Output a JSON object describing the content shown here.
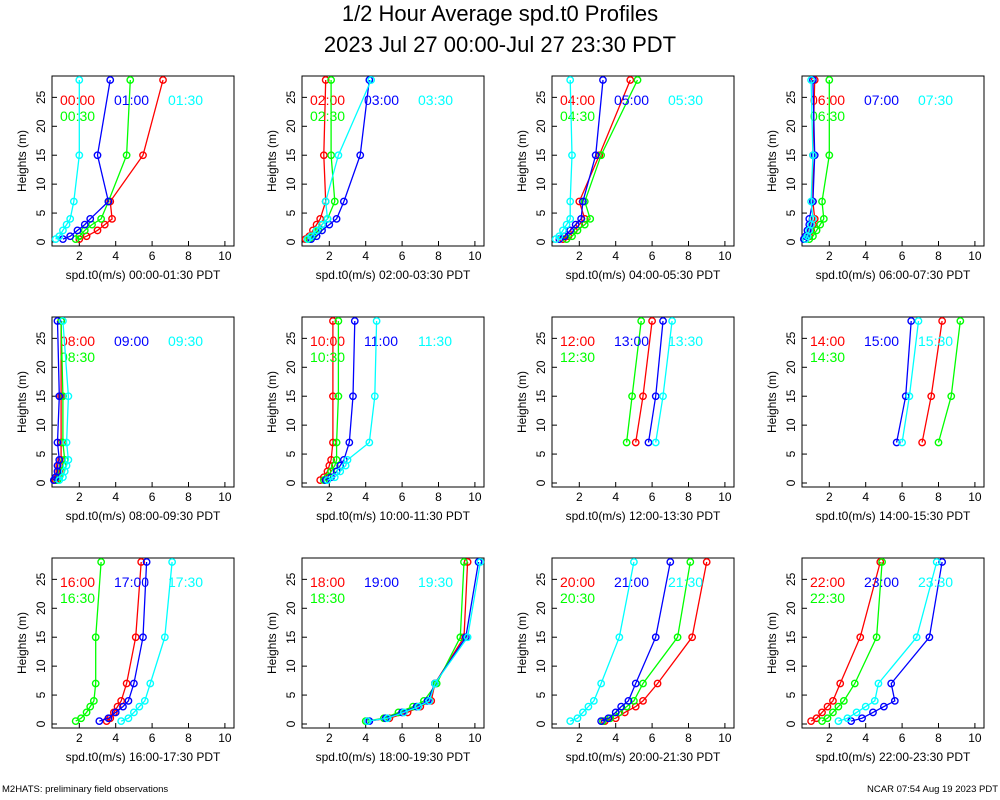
{
  "header": {
    "title_line1": "1/2 Hour Average spd.t0 Profiles",
    "title_line2": "2023 Jul 27 00:00-Jul 27 23:30 PDT"
  },
  "footer": {
    "left": "M2HATS: preliminary field observations",
    "right": "NCAR 07:54 Aug 19 2023 PDT"
  },
  "colors": {
    "series": [
      "#ff0000",
      "#00ff00",
      "#0000ff",
      "#00ffff"
    ]
  },
  "chart_data": [
    {
      "type": "line",
      "xlabel": "spd.t0(m/s) 00:00-01:30 PDT",
      "ylabel": "Heights (m)",
      "xlim": [
        0.5,
        10.5
      ],
      "ylim": [
        0,
        28
      ],
      "x_ticks": [
        2,
        4,
        6,
        8,
        10
      ],
      "y_ticks": [
        0,
        5,
        10,
        15,
        20,
        25
      ],
      "heights": [
        0.5,
        1,
        2,
        3,
        4,
        7,
        15,
        28
      ],
      "series": [
        {
          "name": "00:00",
          "color": "#ff0000",
          "x": [
            2.0,
            2.4,
            3.0,
            3.4,
            3.8,
            3.7,
            5.5,
            6.6
          ]
        },
        {
          "name": "00:30",
          "color": "#00ff00",
          "x": [
            1.8,
            2.0,
            2.3,
            2.7,
            3.2,
            3.6,
            4.6,
            4.8
          ]
        },
        {
          "name": "01:00",
          "color": "#0000ff",
          "x": [
            1.1,
            1.5,
            1.9,
            2.3,
            2.6,
            3.6,
            3.0,
            3.7
          ]
        },
        {
          "name": "01:30",
          "color": "#00ffff",
          "x": [
            0.7,
            0.9,
            1.1,
            1.3,
            1.5,
            1.7,
            2.0,
            2.0
          ]
        }
      ]
    },
    {
      "type": "line",
      "xlabel": "spd.t0(m/s) 02:00-03:30 PDT",
      "ylabel": "Heights (m)",
      "xlim": [
        0.5,
        10.5
      ],
      "ylim": [
        0,
        28
      ],
      "x_ticks": [
        2,
        4,
        6,
        8,
        10
      ],
      "y_ticks": [
        0,
        5,
        10,
        15,
        20,
        25
      ],
      "heights": [
        0.5,
        1,
        2,
        3,
        4,
        7,
        15,
        28
      ],
      "series": [
        {
          "name": "02:00",
          "color": "#ff0000",
          "x": [
            0.7,
            0.9,
            1.1,
            1.3,
            1.5,
            1.8,
            1.7,
            1.8
          ]
        },
        {
          "name": "02:30",
          "color": "#00ff00",
          "x": [
            0.9,
            1.1,
            1.4,
            1.6,
            1.9,
            2.3,
            2.1,
            2.1
          ]
        },
        {
          "name": "03:00",
          "color": "#0000ff",
          "x": [
            1.0,
            1.3,
            1.6,
            2.0,
            2.4,
            2.8,
            3.7,
            4.2
          ]
        },
        {
          "name": "03:30",
          "color": "#00ffff",
          "x": [
            0.8,
            1.0,
            1.3,
            1.6,
            1.9,
            1.8,
            2.5,
            4.3
          ]
        }
      ]
    },
    {
      "type": "line",
      "xlabel": "spd.t0(m/s) 04:00-05:30 PDT",
      "ylabel": "Heights (m)",
      "xlim": [
        0.5,
        10.5
      ],
      "ylim": [
        0,
        28
      ],
      "x_ticks": [
        2,
        4,
        6,
        8,
        10
      ],
      "y_ticks": [
        0,
        5,
        10,
        15,
        20,
        25
      ],
      "heights": [
        0.5,
        1,
        2,
        3,
        4,
        7,
        15,
        28
      ],
      "series": [
        {
          "name": "04:00",
          "color": "#ff0000",
          "x": [
            1.1,
            1.4,
            1.7,
            2.0,
            2.3,
            2.0,
            3.1,
            4.8
          ]
        },
        {
          "name": "04:30",
          "color": "#00ff00",
          "x": [
            1.3,
            1.6,
            1.9,
            2.3,
            2.6,
            2.3,
            3.2,
            5.2
          ]
        },
        {
          "name": "05:00",
          "color": "#0000ff",
          "x": [
            0.9,
            1.2,
            1.5,
            1.8,
            2.1,
            2.2,
            2.9,
            3.3
          ]
        },
        {
          "name": "05:30",
          "color": "#00ffff",
          "x": [
            0.7,
            0.9,
            1.1,
            1.3,
            1.5,
            1.5,
            1.6,
            1.5
          ]
        }
      ]
    },
    {
      "type": "line",
      "xlabel": "spd.t0(m/s) 06:00-07:30 PDT",
      "ylabel": "Heights (m)",
      "xlim": [
        0.5,
        10.5
      ],
      "ylim": [
        0,
        28
      ],
      "x_ticks": [
        2,
        4,
        6,
        8,
        10
      ],
      "y_ticks": [
        0,
        5,
        10,
        15,
        20,
        25
      ],
      "heights": [
        0.5,
        1,
        2,
        3,
        4,
        7,
        15,
        28
      ],
      "series": [
        {
          "name": "06:00",
          "color": "#ff0000",
          "x": [
            0.7,
            0.9,
            1.0,
            1.1,
            1.2,
            1.1,
            1.1,
            1.2
          ]
        },
        {
          "name": "06:30",
          "color": "#00ff00",
          "x": [
            0.9,
            1.1,
            1.3,
            1.5,
            1.7,
            1.6,
            2.0,
            2.0
          ]
        },
        {
          "name": "07:00",
          "color": "#0000ff",
          "x": [
            0.6,
            0.7,
            0.8,
            0.9,
            0.9,
            1.1,
            1.2,
            1.1
          ]
        },
        {
          "name": "07:30",
          "color": "#00ffff",
          "x": [
            0.7,
            0.8,
            0.9,
            1.0,
            1.1,
            1.0,
            1.1,
            1.0
          ]
        }
      ]
    },
    {
      "type": "line",
      "xlabel": "spd.t0(m/s) 08:00-09:30 PDT",
      "ylabel": "Heights (m)",
      "xlim": [
        0.5,
        10.5
      ],
      "ylim": [
        0,
        28
      ],
      "x_ticks": [
        2,
        4,
        6,
        8,
        10
      ],
      "y_ticks": [
        0,
        5,
        10,
        15,
        20,
        25
      ],
      "heights": [
        0.5,
        1,
        2,
        3,
        4,
        7,
        15,
        28
      ],
      "series": [
        {
          "name": "08:00",
          "color": "#ff0000",
          "x": [
            0.7,
            0.8,
            0.9,
            0.9,
            1.0,
            1.0,
            1.0,
            1.0
          ]
        },
        {
          "name": "08:30",
          "color": "#00ff00",
          "x": [
            0.8,
            0.9,
            1.0,
            1.1,
            1.2,
            1.1,
            1.1,
            1.0
          ]
        },
        {
          "name": "09:00",
          "color": "#0000ff",
          "x": [
            0.6,
            0.7,
            0.8,
            0.8,
            0.9,
            0.8,
            0.9,
            0.8
          ]
        },
        {
          "name": "09:30",
          "color": "#00ffff",
          "x": [
            0.9,
            1.1,
            1.2,
            1.3,
            1.4,
            1.3,
            1.4,
            1.1
          ]
        }
      ]
    },
    {
      "type": "line",
      "xlabel": "spd.t0(m/s) 10:00-11:30 PDT",
      "ylabel": "Heights (m)",
      "xlim": [
        0.5,
        10.5
      ],
      "ylim": [
        0,
        28
      ],
      "x_ticks": [
        2,
        4,
        6,
        8,
        10
      ],
      "y_ticks": [
        0,
        5,
        10,
        15,
        20,
        25
      ],
      "heights": [
        0.5,
        1,
        2,
        3,
        4,
        7,
        15,
        28
      ],
      "series": [
        {
          "name": "10:00",
          "color": "#ff0000",
          "x": [
            1.5,
            1.7,
            1.9,
            2.0,
            2.1,
            2.2,
            2.2,
            2.2
          ]
        },
        {
          "name": "10:30",
          "color": "#00ff00",
          "x": [
            1.7,
            1.9,
            2.1,
            2.3,
            2.4,
            2.4,
            2.5,
            2.5
          ]
        },
        {
          "name": "11:00",
          "color": "#0000ff",
          "x": [
            1.8,
            2.1,
            2.4,
            2.6,
            2.8,
            3.1,
            3.3,
            3.4
          ]
        },
        {
          "name": "11:30",
          "color": "#00ffff",
          "x": [
            1.9,
            2.3,
            2.6,
            2.9,
            3.0,
            4.2,
            4.5,
            4.6
          ]
        }
      ]
    },
    {
      "type": "line",
      "xlabel": "spd.t0(m/s) 12:00-13:30 PDT",
      "ylabel": "Heights (m)",
      "xlim": [
        0.5,
        10.5
      ],
      "ylim": [
        0,
        28
      ],
      "x_ticks": [
        2,
        4,
        6,
        8,
        10
      ],
      "y_ticks": [
        0,
        5,
        10,
        15,
        20,
        25
      ],
      "heights": [
        7,
        15,
        28
      ],
      "series": [
        {
          "name": "12:00",
          "color": "#ff0000",
          "x": [
            5.1,
            5.5,
            6.0
          ]
        },
        {
          "name": "12:30",
          "color": "#00ff00",
          "x": [
            4.6,
            4.9,
            5.4
          ]
        },
        {
          "name": "13:00",
          "color": "#0000ff",
          "x": [
            5.8,
            6.2,
            6.6
          ]
        },
        {
          "name": "13:30",
          "color": "#00ffff",
          "x": [
            6.2,
            6.6,
            7.1
          ]
        }
      ]
    },
    {
      "type": "line",
      "xlabel": "spd.t0(m/s) 14:00-15:30 PDT",
      "ylabel": "Heights (m)",
      "xlim": [
        0.5,
        10.5
      ],
      "ylim": [
        0,
        28
      ],
      "x_ticks": [
        2,
        4,
        6,
        8,
        10
      ],
      "y_ticks": [
        0,
        5,
        10,
        15,
        20,
        25
      ],
      "heights": [
        7,
        15,
        28
      ],
      "series": [
        {
          "name": "14:00",
          "color": "#ff0000",
          "x": [
            7.1,
            7.6,
            8.2
          ]
        },
        {
          "name": "14:30",
          "color": "#00ff00",
          "x": [
            8.0,
            8.7,
            9.2
          ]
        },
        {
          "name": "15:00",
          "color": "#0000ff",
          "x": [
            5.7,
            6.2,
            6.5
          ]
        },
        {
          "name": "15:30",
          "color": "#00ffff",
          "x": [
            6.0,
            6.4,
            6.9
          ]
        }
      ]
    },
    {
      "type": "line",
      "xlabel": "spd.t0(m/s) 16:00-17:30 PDT",
      "ylabel": "Heights (m)",
      "xlim": [
        0.5,
        10.5
      ],
      "ylim": [
        0,
        28
      ],
      "x_ticks": [
        2,
        4,
        6,
        8,
        10
      ],
      "y_ticks": [
        0,
        5,
        10,
        15,
        20,
        25
      ],
      "heights": [
        0.5,
        1,
        2,
        3,
        4,
        7,
        15,
        28
      ],
      "series": [
        {
          "name": "16:00",
          "color": "#ff0000",
          "x": [
            3.5,
            3.7,
            3.9,
            4.1,
            4.3,
            4.6,
            5.1,
            5.4
          ]
        },
        {
          "name": "16:30",
          "color": "#00ff00",
          "x": [
            1.8,
            2.1,
            2.4,
            2.6,
            2.8,
            2.9,
            2.9,
            3.2
          ]
        },
        {
          "name": "17:00",
          "color": "#0000ff",
          "x": [
            3.1,
            3.6,
            4.0,
            4.4,
            4.7,
            5.0,
            5.5,
            5.7
          ]
        },
        {
          "name": "17:30",
          "color": "#00ffff",
          "x": [
            4.3,
            4.7,
            5.0,
            5.3,
            5.6,
            5.9,
            6.7,
            7.1
          ]
        }
      ]
    },
    {
      "type": "line",
      "xlabel": "spd.t0(m/s) 18:00-19:30 PDT",
      "ylabel": "Heights (m)",
      "xlim": [
        0.5,
        10.5
      ],
      "ylim": [
        0,
        28
      ],
      "x_ticks": [
        2,
        4,
        6,
        8,
        10
      ],
      "y_ticks": [
        0,
        5,
        10,
        15,
        20,
        25
      ],
      "heights": [
        0.5,
        1,
        2,
        3,
        4,
        7,
        15,
        28
      ],
      "series": [
        {
          "name": "18:00",
          "color": "#ff0000",
          "x": [
            4.1,
            5.3,
            6.3,
            7.0,
            7.6,
            7.8,
            9.4,
            9.6
          ]
        },
        {
          "name": "18:30",
          "color": "#00ff00",
          "x": [
            4.0,
            5.0,
            5.8,
            6.6,
            7.2,
            7.9,
            9.2,
            9.4
          ]
        },
        {
          "name": "19:00",
          "color": "#0000ff",
          "x": [
            4.2,
            5.1,
            6.0,
            6.8,
            7.4,
            7.8,
            9.5,
            10.2
          ]
        },
        {
          "name": "19:30",
          "color": "#00ffff",
          "x": [
            4.1,
            5.2,
            6.1,
            6.9,
            7.5,
            7.8,
            9.6,
            10.3
          ]
        }
      ]
    },
    {
      "type": "line",
      "xlabel": "spd.t0(m/s) 20:00-21:30 PDT",
      "ylabel": "Heights (m)",
      "xlim": [
        0.5,
        10.5
      ],
      "ylim": [
        0,
        28
      ],
      "x_ticks": [
        2,
        4,
        6,
        8,
        10
      ],
      "y_ticks": [
        0,
        5,
        10,
        15,
        20,
        25
      ],
      "heights": [
        0.5,
        1,
        2,
        3,
        4,
        7,
        15,
        28
      ],
      "series": [
        {
          "name": "20:00",
          "color": "#ff0000",
          "x": [
            3.4,
            4.0,
            4.5,
            5.1,
            5.5,
            6.3,
            8.2,
            9.0
          ]
        },
        {
          "name": "20:30",
          "color": "#00ff00",
          "x": [
            3.3,
            3.7,
            4.2,
            4.6,
            5.0,
            5.5,
            7.4,
            8.1
          ]
        },
        {
          "name": "21:00",
          "color": "#0000ff",
          "x": [
            3.2,
            3.6,
            4.0,
            4.3,
            4.7,
            5.1,
            6.2,
            7.0
          ]
        },
        {
          "name": "21:30",
          "color": "#00ffff",
          "x": [
            1.5,
            1.9,
            2.2,
            2.5,
            2.8,
            3.2,
            4.2,
            5.0
          ]
        }
      ]
    },
    {
      "type": "line",
      "xlabel": "spd.t0(m/s) 22:00-23:30 PDT",
      "ylabel": "Heights (m)",
      "xlim": [
        0.5,
        10.5
      ],
      "ylim": [
        0,
        28
      ],
      "x_ticks": [
        2,
        4,
        6,
        8,
        10
      ],
      "y_ticks": [
        0,
        5,
        10,
        15,
        20,
        25
      ],
      "heights": [
        0.5,
        1,
        2,
        3,
        4,
        7,
        15,
        28
      ],
      "series": [
        {
          "name": "22:00",
          "color": "#ff0000",
          "x": [
            1.0,
            1.3,
            1.6,
            1.9,
            2.2,
            2.6,
            3.7,
            4.8
          ]
        },
        {
          "name": "22:30",
          "color": "#00ff00",
          "x": [
            1.6,
            1.9,
            2.2,
            2.5,
            2.8,
            3.4,
            4.6,
            4.9
          ]
        },
        {
          "name": "23:00",
          "color": "#0000ff",
          "x": [
            3.2,
            3.8,
            4.4,
            5.0,
            5.6,
            5.4,
            7.5,
            8.2
          ]
        },
        {
          "name": "23:30",
          "color": "#00ffff",
          "x": [
            2.5,
            3.0,
            3.5,
            4.0,
            4.5,
            4.7,
            6.8,
            7.9
          ]
        }
      ]
    }
  ]
}
